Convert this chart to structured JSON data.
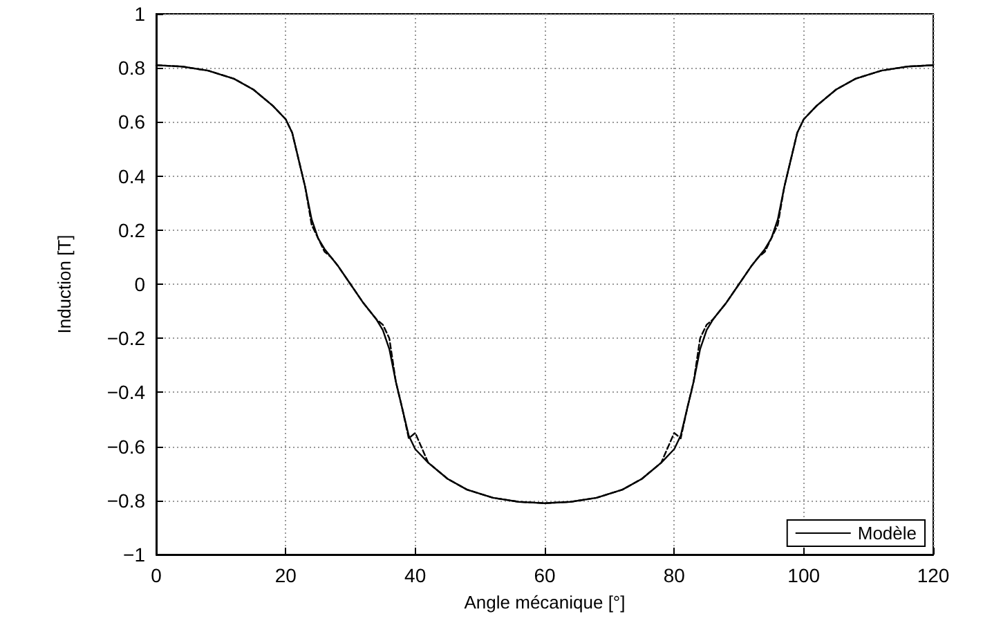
{
  "chart_data": {
    "type": "line",
    "xlabel": "Angle mécanique [°]",
    "ylabel": "Induction [T]",
    "x": [
      0,
      4,
      8,
      12,
      15,
      18,
      20,
      21,
      22,
      23,
      24,
      25,
      26,
      27,
      28,
      30,
      32,
      33,
      34,
      35,
      36,
      37,
      38,
      39,
      40,
      42,
      45,
      48,
      52,
      56,
      60,
      64,
      68,
      72,
      75,
      78,
      80,
      81,
      82,
      83,
      84,
      85,
      86,
      87,
      88,
      90,
      92,
      93,
      94,
      95,
      96,
      97,
      98,
      99,
      100,
      102,
      105,
      108,
      112,
      116,
      120
    ],
    "series": [
      {
        "name": "Modèle",
        "color": "#000000",
        "line_style": "solid",
        "values": [
          0.81,
          0.805,
          0.79,
          0.76,
          0.72,
          0.66,
          0.61,
          0.56,
          0.46,
          0.36,
          0.24,
          0.17,
          0.13,
          0.1,
          0.07,
          0,
          -0.07,
          -0.1,
          -0.13,
          -0.17,
          -0.24,
          -0.36,
          -0.46,
          -0.56,
          -0.61,
          -0.66,
          -0.72,
          -0.76,
          -0.79,
          -0.805,
          -0.81,
          -0.805,
          -0.79,
          -0.76,
          -0.72,
          -0.66,
          -0.61,
          -0.56,
          -0.46,
          -0.36,
          -0.24,
          -0.17,
          -0.13,
          -0.1,
          -0.07,
          0,
          0.07,
          0.1,
          0.13,
          0.17,
          0.24,
          0.36,
          0.46,
          0.56,
          0.61,
          0.66,
          0.72,
          0.76,
          0.79,
          0.805,
          0.81
        ]
      },
      {
        "color": "#000000",
        "line_style": "dashed",
        "values": [
          0.81,
          0.805,
          0.79,
          0.76,
          0.72,
          0.66,
          0.61,
          0.56,
          0.46,
          0.36,
          0.22,
          0.17,
          0.12,
          0.1,
          0.07,
          0,
          -0.07,
          -0.1,
          -0.13,
          -0.15,
          -0.2,
          -0.36,
          -0.46,
          -0.57,
          -0.55,
          -0.66,
          -0.72,
          -0.76,
          -0.79,
          -0.805,
          -0.81,
          -0.805,
          -0.79,
          -0.76,
          -0.72,
          -0.66,
          -0.55,
          -0.57,
          -0.46,
          -0.36,
          -0.2,
          -0.15,
          -0.13,
          -0.1,
          -0.07,
          0,
          0.07,
          0.1,
          0.12,
          0.17,
          0.22,
          0.36,
          0.46,
          0.56,
          0.61,
          0.66,
          0.72,
          0.76,
          0.79,
          0.805,
          0.81
        ]
      }
    ],
    "xlim": [
      0,
      120
    ],
    "xticks": [
      0,
      20,
      40,
      60,
      80,
      100,
      120
    ],
    "ylim": [
      -1,
      1
    ],
    "yticks": [
      -1,
      -0.8,
      -0.6,
      -0.4,
      -0.2,
      0,
      0.2,
      0.4,
      0.6,
      0.8,
      1
    ],
    "grid": true,
    "legend": "bottom right",
    "marker": "none"
  }
}
